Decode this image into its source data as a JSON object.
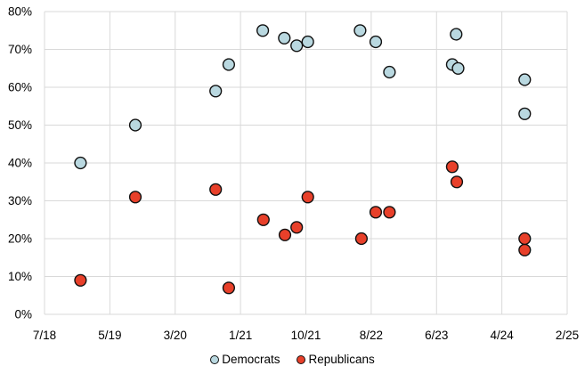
{
  "chart_data": {
    "type": "scatter",
    "title": "",
    "x_axis": {
      "tick_labels": [
        "7/18",
        "5/19",
        "3/20",
        "1/21",
        "10/21",
        "8/22",
        "6/23",
        "4/24",
        "2/25"
      ],
      "grid": true
    },
    "y_axis": {
      "min": 0,
      "max": 80,
      "step": 10,
      "unit": "%",
      "tick_labels": [
        "0%",
        "10%",
        "20%",
        "30%",
        "40%",
        "50%",
        "60%",
        "70%",
        "80%"
      ],
      "grid": true
    },
    "legend_position": "bottom-center",
    "series": [
      {
        "name": "Democrats",
        "marker": "circle",
        "fill": "#b9d8e0",
        "stroke": "#111111",
        "points": [
          {
            "t": 0.55,
            "v": 40
          },
          {
            "t": 1.39,
            "v": 50
          },
          {
            "t": 2.62,
            "v": 59
          },
          {
            "t": 2.82,
            "v": 66
          },
          {
            "t": 3.34,
            "v": 75
          },
          {
            "t": 3.67,
            "v": 73
          },
          {
            "t": 3.86,
            "v": 71
          },
          {
            "t": 4.03,
            "v": 72
          },
          {
            "t": 4.83,
            "v": 75
          },
          {
            "t": 5.07,
            "v": 72
          },
          {
            "t": 5.28,
            "v": 64
          },
          {
            "t": 6.24,
            "v": 66
          },
          {
            "t": 6.33,
            "v": 65
          },
          {
            "t": 6.3,
            "v": 74
          },
          {
            "t": 7.35,
            "v": 62
          },
          {
            "t": 7.35,
            "v": 53
          }
        ]
      },
      {
        "name": "Republicans",
        "marker": "circle",
        "fill": "#e8402a",
        "stroke": "#111111",
        "points": [
          {
            "t": 0.55,
            "v": 9
          },
          {
            "t": 1.39,
            "v": 31
          },
          {
            "t": 2.62,
            "v": 33
          },
          {
            "t": 2.82,
            "v": 7
          },
          {
            "t": 3.35,
            "v": 25
          },
          {
            "t": 3.68,
            "v": 21
          },
          {
            "t": 3.86,
            "v": 23
          },
          {
            "t": 4.03,
            "v": 31
          },
          {
            "t": 4.85,
            "v": 20
          },
          {
            "t": 5.07,
            "v": 27
          },
          {
            "t": 5.28,
            "v": 27
          },
          {
            "t": 6.24,
            "v": 39
          },
          {
            "t": 6.31,
            "v": 35
          },
          {
            "t": 7.35,
            "v": 17
          },
          {
            "t": 7.35,
            "v": 20
          }
        ]
      }
    ]
  },
  "colors": {
    "background": "#ffffff",
    "gridline": "#d9d9d9",
    "text": "#000000",
    "democrats_fill": "#b9d8e0",
    "republicans_fill": "#e8402a",
    "marker_outline": "#111111"
  }
}
